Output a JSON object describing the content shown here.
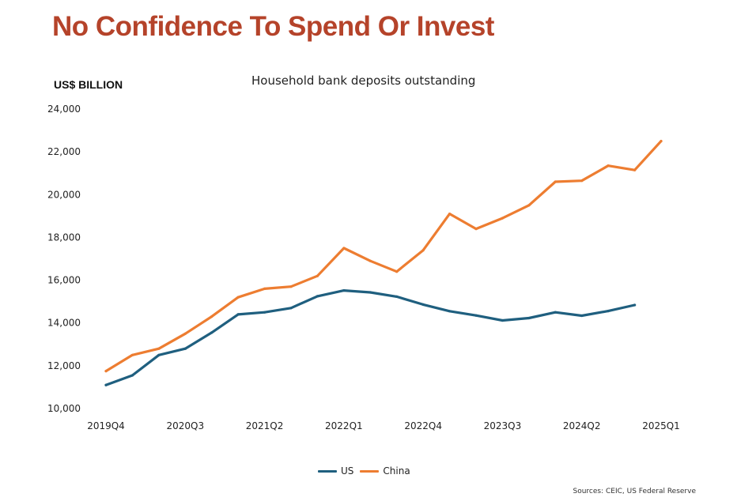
{
  "header": {
    "headline": "No Confidence To Spend Or Invest"
  },
  "chart_data": {
    "type": "line",
    "title": "Household bank deposits outstanding",
    "ylabel": "US$ BILLION",
    "xlabel": "",
    "ylim": [
      10000,
      24000
    ],
    "yticks": [
      10000,
      12000,
      14000,
      16000,
      18000,
      20000,
      22000,
      24000
    ],
    "ytick_labels": [
      "10,000",
      "12,000",
      "14,000",
      "16,000",
      "18,000",
      "20,000",
      "22,000",
      "24,000"
    ],
    "categories": [
      "2019Q4",
      "2020Q1",
      "2020Q2",
      "2020Q3",
      "2020Q4",
      "2021Q1",
      "2021Q2",
      "2021Q3",
      "2021Q4",
      "2022Q1",
      "2022Q2",
      "2022Q3",
      "2022Q4",
      "2023Q1",
      "2023Q2",
      "2023Q3",
      "2023Q4",
      "2024Q1",
      "2024Q2",
      "2024Q3",
      "2024Q4",
      "2025Q1"
    ],
    "xtick_labels": [
      "2019Q4",
      "2020Q3",
      "2021Q2",
      "2022Q1",
      "2022Q4",
      "2023Q3",
      "2024Q2",
      "2025Q1"
    ],
    "grid": false,
    "legend_position": "bottom",
    "series": [
      {
        "name": "US",
        "color": "#1f5f7f",
        "values": [
          11100,
          11550,
          12500,
          12800,
          13550,
          14400,
          14500,
          14700,
          15250,
          15520,
          15430,
          15230,
          14860,
          14550,
          14350,
          14120,
          14230,
          14500,
          14340,
          14560,
          14840,
          null
        ]
      },
      {
        "name": "China",
        "color": "#ed7d31",
        "values": [
          11750,
          12500,
          12800,
          13500,
          14300,
          15200,
          15600,
          15700,
          16200,
          17500,
          16900,
          16400,
          17400,
          19100,
          18400,
          18900,
          19500,
          20600,
          20650,
          21350,
          21150,
          22500
        ]
      }
    ]
  },
  "footer": {
    "source": "Sources: CEIC, US Federal Reserve"
  }
}
